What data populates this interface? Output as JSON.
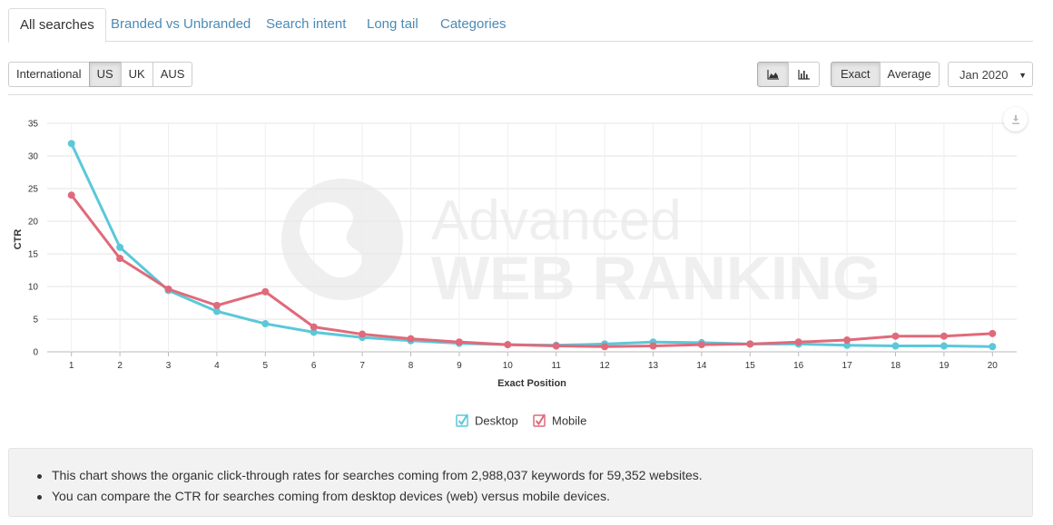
{
  "tabs": [
    {
      "label": "All searches",
      "active": true
    },
    {
      "label": "Branded vs Unbranded",
      "active": false
    },
    {
      "label": "Search intent",
      "active": false
    },
    {
      "label": "Long tail",
      "active": false
    },
    {
      "label": "Categories",
      "active": false
    }
  ],
  "regions": [
    {
      "label": "International",
      "active": false
    },
    {
      "label": "US",
      "active": true
    },
    {
      "label": "UK",
      "active": false
    },
    {
      "label": "AUS",
      "active": false
    }
  ],
  "view_icons": [
    {
      "icon": "area-chart-icon",
      "active": true
    },
    {
      "icon": "bar-chart-icon",
      "active": false
    }
  ],
  "match_modes": [
    {
      "label": "Exact",
      "active": true
    },
    {
      "label": "Average",
      "active": false
    }
  ],
  "date_select": {
    "value": "Jan 2020"
  },
  "watermark": {
    "line1": "Advanced",
    "line2": "WEB RANKING"
  },
  "chart_data": {
    "type": "line",
    "xlabel": "Exact Position",
    "ylabel": "CTR",
    "x": [
      1,
      2,
      3,
      4,
      5,
      6,
      7,
      8,
      9,
      10,
      11,
      12,
      13,
      14,
      15,
      16,
      17,
      18,
      19,
      20
    ],
    "ylim": [
      0,
      35
    ],
    "yticks": [
      0,
      5,
      10,
      15,
      20,
      25,
      30,
      35
    ],
    "grid": true,
    "legend_position": "bottom-center",
    "series": [
      {
        "name": "Desktop",
        "color": "#5bc8d9",
        "values": [
          31.9,
          16.0,
          9.4,
          6.2,
          4.3,
          3.0,
          2.2,
          1.7,
          1.3,
          1.1,
          1.0,
          1.2,
          1.5,
          1.4,
          1.2,
          1.2,
          1.0,
          0.9,
          0.9,
          0.8
        ]
      },
      {
        "name": "Mobile",
        "color": "#e06a7a",
        "values": [
          24.0,
          14.3,
          9.6,
          7.1,
          9.2,
          3.8,
          2.7,
          2.0,
          1.5,
          1.1,
          0.9,
          0.8,
          0.9,
          1.1,
          1.2,
          1.5,
          1.8,
          2.4,
          2.4,
          2.8
        ]
      }
    ]
  },
  "info": {
    "items": [
      "This chart shows the organic click-through rates for searches coming from 2,988,037 keywords for 59,352 websites.",
      "You can compare the CTR for searches coming from desktop devices (web) versus mobile devices."
    ]
  }
}
